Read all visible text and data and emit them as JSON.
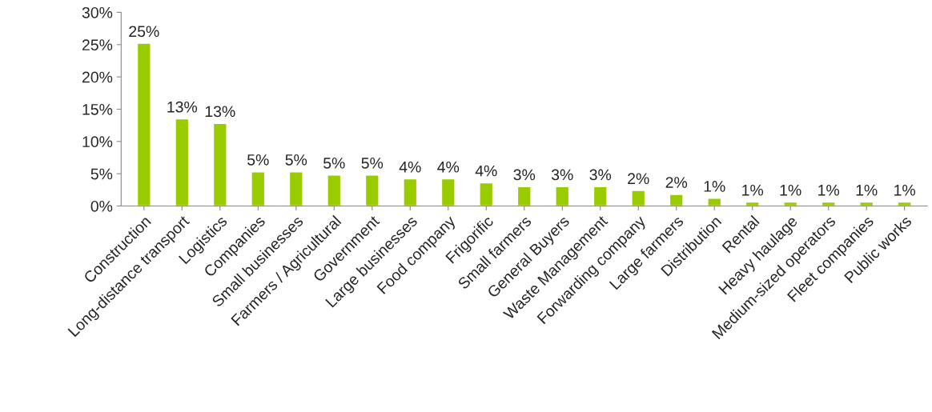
{
  "chart_data": {
    "type": "bar",
    "categories": [
      "Construction",
      "Long-distance transport",
      "Logistics",
      "Companies",
      "Small businesses",
      "Farmers / Agricultural",
      "Government",
      "Large businesses",
      "Food company",
      "Frigorific",
      "Small farmers",
      "General Buyers",
      "Waste Management",
      "Forwarding company",
      "Large farmers",
      "Distribution",
      "Rental",
      "Heavy haulage",
      "Medium-sized operators",
      "Fleet companies",
      "Public works"
    ],
    "values": [
      25.2,
      13.5,
      12.8,
      5.3,
      5.3,
      4.8,
      4.8,
      4.2,
      4.2,
      3.6,
      3.0,
      3.0,
      3.0,
      2.4,
      1.8,
      1.2,
      0.6,
      0.6,
      0.6,
      0.6,
      0.6
    ],
    "value_labels": [
      "25%",
      "13%",
      "13%",
      "5%",
      "5%",
      "5%",
      "5%",
      "4%",
      "4%",
      "4%",
      "3%",
      "3%",
      "3%",
      "2%",
      "2%",
      "1%",
      "1%",
      "1%",
      "1%",
      "1%",
      "1%"
    ],
    "color": "#99cc00",
    "ylim": [
      0,
      30
    ],
    "yticks": [
      {
        "value": 0,
        "label": "0%"
      },
      {
        "value": 5,
        "label": "5%"
      },
      {
        "value": 10,
        "label": "10%"
      },
      {
        "value": 15,
        "label": "15%"
      },
      {
        "value": 20,
        "label": "20%"
      },
      {
        "value": 25,
        "label": "25%"
      },
      {
        "value": 30,
        "label": "30%"
      }
    ],
    "grid": false,
    "legend": false
  }
}
